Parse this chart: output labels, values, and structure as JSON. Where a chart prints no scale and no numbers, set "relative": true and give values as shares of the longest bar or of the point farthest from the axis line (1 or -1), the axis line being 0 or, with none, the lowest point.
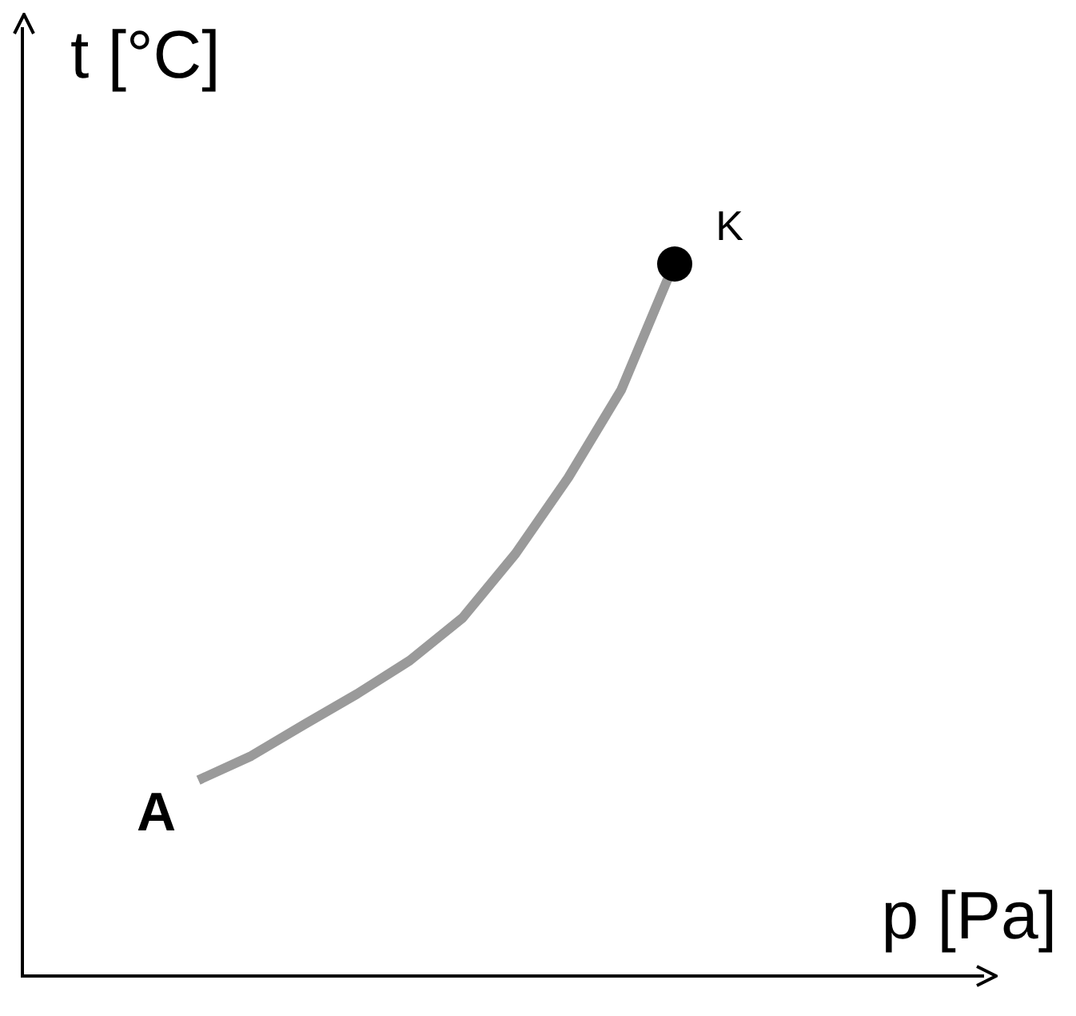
{
  "chart_data": {
    "type": "line",
    "relative": true,
    "xlabel": "p [Pa]",
    "ylabel": "t [°C]",
    "categories": [
      null,
      null,
      null,
      null,
      null,
      null,
      null,
      null,
      null,
      null
    ],
    "series": [
      {
        "color": "#9a9a9a",
        "marker": "none",
        "values": [
          0.275,
          0.309,
          0.353,
          0.396,
          0.443,
          0.503,
          0.593,
          0.7,
          0.823,
          1
        ]
      }
    ],
    "annotations": [
      "A",
      "K"
    ],
    "grid": false,
    "legend": false
  }
}
